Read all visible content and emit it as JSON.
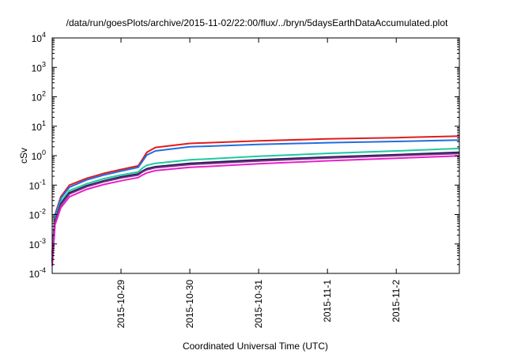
{
  "chart_data": {
    "type": "line",
    "title": "/data/run/goesPlots/archive/2015-11-02/22:00/flux/../bryn/5daysEarthDataAccumulated.plot",
    "xlabel": "Coordinated Universal Time (UTC)",
    "ylabel": "cSv",
    "y_scale": "log",
    "ylim": [
      0.0001,
      10000
    ],
    "xlim": [
      "2015-10-28T00:00",
      "2015-11-02T22:00"
    ],
    "grid": false,
    "legend": "none",
    "y_ticks": [
      {
        "value": 0.0001,
        "base": "10",
        "exp": "-4"
      },
      {
        "value": 0.001,
        "base": "10",
        "exp": "-3"
      },
      {
        "value": 0.01,
        "base": "10",
        "exp": "-2"
      },
      {
        "value": 0.1,
        "base": "10",
        "exp": "-1"
      },
      {
        "value": 1,
        "base": "10",
        "exp": "0"
      },
      {
        "value": 10,
        "base": "10",
        "exp": "1"
      },
      {
        "value": 100,
        "base": "10",
        "exp": "2"
      },
      {
        "value": 1000,
        "base": "10",
        "exp": "3"
      },
      {
        "value": 10000,
        "base": "10",
        "exp": "4"
      }
    ],
    "x_ticks": [
      "2015-10-29",
      "2015-10-30",
      "2015-10-31",
      "2015-11-1",
      "2015-11-2"
    ],
    "x_tick_dates": [
      "2015-10-29T00:00",
      "2015-10-30T00:00",
      "2015-10-31T00:00",
      "2015-11-01T00:00",
      "2015-11-02T00:00"
    ],
    "series": [
      {
        "color": "#e41a1c",
        "x": [
          "2015-10-28T00:00",
          "2015-10-28T01:00",
          "2015-10-28T03:00",
          "2015-10-28T06:00",
          "2015-10-28T12:00",
          "2015-10-28T18:00",
          "2015-10-29T00:00",
          "2015-10-29T06:00",
          "2015-10-29T07:30",
          "2015-10-29T09:00",
          "2015-10-29T12:00",
          "2015-10-30T00:00",
          "2015-10-31T00:00",
          "2015-11-01T00:00",
          "2015-11-02T00:00",
          "2015-11-02T22:00"
        ],
        "values": [
          0.0005,
          0.01,
          0.04,
          0.1,
          0.17,
          0.25,
          0.34,
          0.45,
          0.75,
          1.3,
          1.9,
          2.6,
          3.2,
          3.7,
          4.1,
          4.6
        ]
      },
      {
        "color": "#1f6fe0",
        "x": [
          "2015-10-28T00:00",
          "2015-10-28T01:00",
          "2015-10-28T03:00",
          "2015-10-28T06:00",
          "2015-10-28T12:00",
          "2015-10-28T18:00",
          "2015-10-29T00:00",
          "2015-10-29T06:00",
          "2015-10-29T07:30",
          "2015-10-29T09:00",
          "2015-10-29T12:00",
          "2015-10-30T00:00",
          "2015-10-31T00:00",
          "2015-11-01T00:00",
          "2015-11-02T00:00",
          "2015-11-02T22:00"
        ],
        "values": [
          0.0004,
          0.009,
          0.035,
          0.085,
          0.15,
          0.22,
          0.3,
          0.4,
          0.65,
          1.05,
          1.45,
          2.0,
          2.4,
          2.75,
          3.05,
          3.4
        ]
      },
      {
        "color": "#1fc9a0",
        "x": [
          "2015-10-28T00:00",
          "2015-10-28T01:00",
          "2015-10-28T03:00",
          "2015-10-28T06:00",
          "2015-10-28T12:00",
          "2015-10-28T18:00",
          "2015-10-29T00:00",
          "2015-10-29T06:00",
          "2015-10-29T07:30",
          "2015-10-29T09:00",
          "2015-10-29T12:00",
          "2015-10-30T00:00",
          "2015-10-31T00:00",
          "2015-11-01T00:00",
          "2015-11-02T00:00",
          "2015-11-02T22:00"
        ],
        "values": [
          0.0003,
          0.007,
          0.027,
          0.065,
          0.11,
          0.165,
          0.22,
          0.28,
          0.38,
          0.47,
          0.55,
          0.72,
          0.95,
          1.2,
          1.45,
          1.75
        ]
      },
      {
        "color": "#1a1a50",
        "x": [
          "2015-10-28T00:00",
          "2015-10-28T01:00",
          "2015-10-28T03:00",
          "2015-10-28T06:00",
          "2015-10-28T12:00",
          "2015-10-28T18:00",
          "2015-10-29T00:00",
          "2015-10-29T06:00",
          "2015-10-29T07:30",
          "2015-10-29T09:00",
          "2015-10-29T12:00",
          "2015-10-30T00:00",
          "2015-10-31T00:00",
          "2015-11-01T00:00",
          "2015-11-02T00:00",
          "2015-11-02T22:00"
        ],
        "values": [
          0.00025,
          0.006,
          0.023,
          0.055,
          0.095,
          0.14,
          0.19,
          0.24,
          0.3,
          0.36,
          0.42,
          0.55,
          0.72,
          0.9,
          1.08,
          1.3
        ]
      },
      {
        "color": "#7a2e85",
        "x": [
          "2015-10-28T00:00",
          "2015-10-28T01:00",
          "2015-10-28T03:00",
          "2015-10-28T06:00",
          "2015-10-28T12:00",
          "2015-10-28T18:00",
          "2015-10-29T00:00",
          "2015-10-29T06:00",
          "2015-10-29T07:30",
          "2015-10-29T09:00",
          "2015-10-29T12:00",
          "2015-10-30T00:00",
          "2015-10-31T00:00",
          "2015-11-01T00:00",
          "2015-11-02T00:00",
          "2015-11-02T22:00"
        ],
        "values": [
          0.00022,
          0.0055,
          0.021,
          0.05,
          0.088,
          0.13,
          0.175,
          0.22,
          0.28,
          0.33,
          0.39,
          0.5,
          0.66,
          0.83,
          1.0,
          1.18
        ]
      },
      {
        "color": "#e820c8",
        "x": [
          "2015-10-28T00:00",
          "2015-10-28T01:00",
          "2015-10-28T03:00",
          "2015-10-28T06:00",
          "2015-10-28T12:00",
          "2015-10-28T18:00",
          "2015-10-29T00:00",
          "2015-10-29T06:00",
          "2015-10-29T07:30",
          "2015-10-29T09:00",
          "2015-10-29T12:00",
          "2015-10-30T00:00",
          "2015-10-31T00:00",
          "2015-11-01T00:00",
          "2015-11-02T00:00",
          "2015-11-02T22:00"
        ],
        "values": [
          0.00018,
          0.0045,
          0.017,
          0.04,
          0.072,
          0.105,
          0.14,
          0.18,
          0.22,
          0.26,
          0.31,
          0.4,
          0.53,
          0.67,
          0.82,
          0.98
        ]
      }
    ]
  }
}
